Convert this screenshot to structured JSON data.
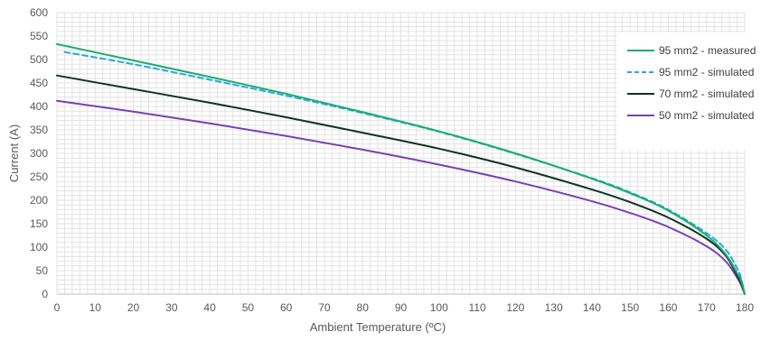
{
  "chart_data": {
    "type": "line",
    "xlabel": "Ambient Temperature (ºC)",
    "ylabel": "Current (A)",
    "xlim": [
      0,
      180
    ],
    "ylim": [
      0,
      600
    ],
    "x_ticks": [
      0,
      10,
      20,
      30,
      40,
      50,
      60,
      70,
      80,
      90,
      100,
      110,
      120,
      130,
      140,
      150,
      160,
      170,
      180
    ],
    "y_ticks": [
      0,
      50,
      100,
      150,
      200,
      250,
      300,
      350,
      400,
      450,
      500,
      550,
      600
    ],
    "grid": true,
    "legend_position": "right",
    "series": [
      {
        "name": "95 mm2 - measured",
        "color": "#1aae6f",
        "dash": "solid",
        "x": [
          0,
          20,
          40,
          60,
          80,
          100,
          120,
          140,
          150,
          160,
          170,
          175,
          178,
          179,
          180
        ],
        "y": [
          533,
          498,
          463,
          427,
          388,
          347,
          300,
          246,
          215,
          178,
          125,
          85,
          45,
          30,
          0
        ]
      },
      {
        "name": "95 mm2 - simulated",
        "color": "#29a8e0",
        "dash": "dashed",
        "x": [
          2,
          20,
          40,
          60,
          80,
          100,
          120,
          140,
          150,
          160,
          170,
          175,
          178,
          179,
          180
        ],
        "y": [
          516,
          490,
          457,
          423,
          386,
          346,
          299,
          247,
          217,
          180,
          130,
          95,
          55,
          35,
          0
        ]
      },
      {
        "name": "70 mm2 - simulated",
        "color": "#0f3326",
        "dash": "solid",
        "x": [
          0,
          20,
          40,
          60,
          80,
          100,
          120,
          140,
          150,
          160,
          170,
          175,
          178,
          179,
          180
        ],
        "y": [
          466,
          437,
          408,
          377,
          344,
          310,
          270,
          223,
          196,
          163,
          118,
          82,
          40,
          25,
          0
        ]
      },
      {
        "name": "50 mm2 - simulated",
        "color": "#7a42b0",
        "dash": "solid",
        "x": [
          0,
          20,
          40,
          60,
          80,
          100,
          120,
          140,
          150,
          160,
          170,
          175,
          178,
          179,
          180
        ],
        "y": [
          412,
          389,
          364,
          337,
          308,
          276,
          240,
          198,
          173,
          143,
          102,
          70,
          35,
          20,
          0
        ]
      }
    ]
  }
}
